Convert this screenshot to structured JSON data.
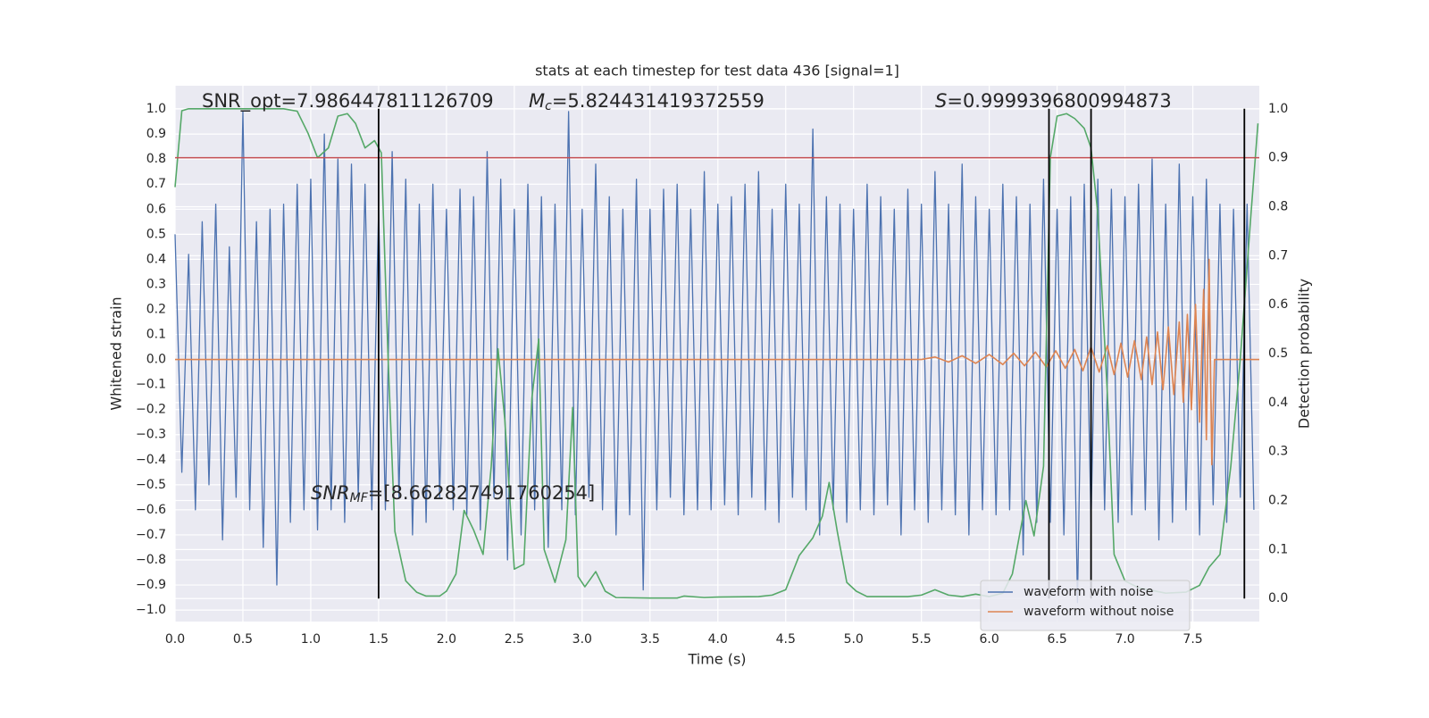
{
  "chart_data": {
    "type": "line",
    "title": "stats at each timestep for test data 436 [signal=1]",
    "xlabel": "Time (s)",
    "ylabel": "Whitened strain",
    "y2label": "Detection probability",
    "xlim": [
      0,
      7.99
    ],
    "ylim": [
      -1.046,
      1.093
    ],
    "y2lim": [
      -0.047,
      1.047
    ],
    "grid": true,
    "legend": "lower right",
    "xticks": [
      {
        "value": 0,
        "label": "0.0"
      },
      0.5,
      {
        "value": 1,
        "label": "1.0"
      },
      1.5,
      {
        "value": 2,
        "label": "2.0"
      },
      2.5,
      {
        "value": 3,
        "label": "3.0"
      },
      3.5,
      {
        "value": 4,
        "label": "4.0"
      },
      4.5,
      {
        "value": 5,
        "label": "5.0"
      },
      5.5,
      {
        "value": 6,
        "label": "6.0"
      },
      6.5,
      {
        "value": 7,
        "label": "7.0"
      },
      7.5
    ],
    "yticks": [
      {
        "value": 1,
        "label": "1.0"
      },
      0.9,
      0.8,
      0.7,
      0.6,
      0.5,
      0.4,
      0.3,
      0.2,
      0.1,
      {
        "value": 0,
        "label": "0.0"
      },
      {
        "value": -0.1,
        "label": "−0.1"
      },
      {
        "value": -0.2,
        "label": "−0.2"
      },
      {
        "value": -0.3,
        "label": "−0.3"
      },
      {
        "value": -0.4,
        "label": "−0.4"
      },
      {
        "value": -0.5,
        "label": "−0.5"
      },
      {
        "value": -0.6,
        "label": "−0.6"
      },
      {
        "value": -0.7,
        "label": "−0.7"
      },
      {
        "value": -0.8,
        "label": "−0.8"
      },
      {
        "value": -0.9,
        "label": "−0.9"
      },
      {
        "value": -1,
        "label": "−1.0"
      }
    ],
    "y2ticks": [
      {
        "value": 0,
        "label": "0.0"
      },
      0.1,
      0.2,
      0.3,
      0.4,
      0.5,
      0.6,
      0.7,
      0.8,
      0.9,
      {
        "value": 1,
        "label": "1.0"
      }
    ],
    "series": [
      {
        "name": "waveform with noise",
        "color": "#4c72b0",
        "x": [
          0,
          0.05,
          0.1,
          0.15,
          0.2,
          0.25,
          0.3,
          0.35,
          0.4,
          0.45,
          0.5,
          0.55,
          0.6,
          0.65,
          0.7,
          0.75,
          0.8,
          0.85,
          0.9,
          0.95,
          1,
          1.05,
          1.1,
          1.15,
          1.2,
          1.25,
          1.3,
          1.35,
          1.4,
          1.45,
          1.5,
          1.55,
          1.6,
          1.65,
          1.7,
          1.75,
          1.8,
          1.85,
          1.9,
          1.95,
          2,
          2.05,
          2.1,
          2.15,
          2.2,
          2.25,
          2.3,
          2.35,
          2.4,
          2.45,
          2.5,
          2.55,
          2.6,
          2.65,
          2.7,
          2.75,
          2.8,
          2.85,
          2.9,
          2.95,
          3,
          3.05,
          3.1,
          3.15,
          3.2,
          3.25,
          3.3,
          3.35,
          3.4,
          3.45,
          3.5,
          3.55,
          3.6,
          3.65,
          3.7,
          3.75,
          3.8,
          3.85,
          3.9,
          3.95,
          4,
          4.05,
          4.1,
          4.15,
          4.2,
          4.25,
          4.3,
          4.35,
          4.4,
          4.45,
          4.5,
          4.55,
          4.6,
          4.65,
          4.7,
          4.75,
          4.8,
          4.85,
          4.9,
          4.95,
          5,
          5.05,
          5.1,
          5.15,
          5.2,
          5.25,
          5.3,
          5.35,
          5.4,
          5.45,
          5.5,
          5.55,
          5.6,
          5.65,
          5.7,
          5.75,
          5.8,
          5.85,
          5.9,
          5.95,
          6,
          6.05,
          6.1,
          6.15,
          6.2,
          6.25,
          6.3,
          6.35,
          6.4,
          6.45,
          6.5,
          6.55,
          6.6,
          6.65,
          6.7,
          6.75,
          6.8,
          6.85,
          6.9,
          6.95,
          7,
          7.05,
          7.1,
          7.15,
          7.2,
          7.25,
          7.3,
          7.35,
          7.4,
          7.45,
          7.5,
          7.55,
          7.6,
          7.65,
          7.7,
          7.75,
          7.8,
          7.85,
          7.9,
          7.95
        ],
        "values": [
          0.5,
          -0.45,
          0.42,
          -0.6,
          0.55,
          -0.5,
          0.62,
          -0.72,
          0.45,
          -0.55,
          0.99,
          -0.6,
          0.55,
          -0.75,
          0.6,
          -0.9,
          0.62,
          -0.65,
          0.7,
          -0.6,
          0.72,
          -0.68,
          0.9,
          -0.6,
          0.8,
          -0.65,
          0.78,
          -0.55,
          0.7,
          -0.6,
          0.6,
          -0.6,
          0.83,
          -0.55,
          0.72,
          -0.7,
          0.62,
          -0.65,
          0.7,
          -0.55,
          0.6,
          -0.6,
          0.68,
          -0.62,
          0.65,
          -0.68,
          0.83,
          -0.55,
          0.72,
          -0.8,
          0.6,
          -0.7,
          0.7,
          -0.6,
          0.65,
          -0.75,
          0.62,
          -0.6,
          0.99,
          -0.62,
          0.6,
          -0.55,
          0.78,
          -0.6,
          0.65,
          -0.7,
          0.6,
          -0.62,
          0.72,
          -0.92,
          0.6,
          -0.6,
          0.68,
          -0.55,
          0.7,
          -0.62,
          0.6,
          -0.6,
          0.75,
          -0.6,
          0.62,
          -0.58,
          0.65,
          -0.62,
          0.7,
          -0.55,
          0.75,
          -0.6,
          0.6,
          -0.65,
          0.7,
          -0.55,
          0.62,
          -0.6,
          0.92,
          -0.7,
          0.65,
          -0.6,
          0.62,
          -0.65,
          0.6,
          -0.6,
          0.7,
          -0.62,
          0.65,
          -0.58,
          0.6,
          -0.7,
          0.68,
          -0.6,
          0.62,
          -0.65,
          0.75,
          -0.6,
          0.62,
          -0.62,
          0.78,
          -0.7,
          0.65,
          -0.6,
          0.6,
          -0.62,
          0.7,
          -0.6,
          0.65,
          -0.78,
          0.62,
          -0.65,
          0.72,
          -0.65,
          0.6,
          -0.7,
          0.65,
          -0.97,
          0.7,
          -0.65,
          0.72,
          -0.6,
          0.68,
          -0.65,
          0.65,
          -0.62,
          0.7,
          -0.6,
          0.8,
          -0.72,
          0.62,
          -0.65,
          0.78,
          -0.6,
          0.65,
          -0.7,
          0.72,
          -0.58,
          0.62,
          -0.65,
          0.6,
          -0.55,
          0.62,
          -0.6
        ]
      },
      {
        "name": "waveform without noise",
        "color": "#dd8452",
        "x": [
          0,
          5.5,
          5.6,
          5.7,
          5.8,
          5.9,
          6.0,
          6.1,
          6.18,
          6.26,
          6.34,
          6.42,
          6.49,
          6.56,
          6.63,
          6.69,
          6.75,
          6.81,
          6.87,
          6.92,
          6.97,
          7.02,
          7.07,
          7.12,
          7.16,
          7.2,
          7.24,
          7.28,
          7.32,
          7.36,
          7.4,
          7.43,
          7.46,
          7.49,
          7.52,
          7.55,
          7.58,
          7.6,
          7.62,
          7.64,
          7.66,
          7.7,
          7.99
        ],
        "values": [
          0,
          0,
          0.01,
          -0.01,
          0.015,
          -0.015,
          0.02,
          -0.02,
          0.025,
          -0.025,
          0.03,
          -0.03,
          0.035,
          -0.035,
          0.04,
          -0.045,
          0.05,
          -0.05,
          0.055,
          -0.06,
          0.065,
          -0.07,
          0.075,
          -0.08,
          0.09,
          -0.1,
          0.11,
          -0.12,
          0.13,
          -0.14,
          0.15,
          -0.17,
          0.18,
          -0.2,
          0.22,
          -0.25,
          0.28,
          -0.32,
          0.4,
          -0.42,
          0,
          0,
          0
        ]
      },
      {
        "color": "#55a868",
        "axis": "y2",
        "x": [
          0,
          0.05,
          0.1,
          0.5,
          0.8,
          0.9,
          0.98,
          1.05,
          1.13,
          1.2,
          1.27,
          1.33,
          1.4,
          1.47,
          1.52,
          1.57,
          1.62,
          1.7,
          1.78,
          1.85,
          1.95,
          2.0,
          2.07,
          2.13,
          2.2,
          2.27,
          2.33,
          2.38,
          2.43,
          2.5,
          2.57,
          2.63,
          2.68,
          2.72,
          2.8,
          2.88,
          2.93,
          2.97,
          3.02,
          3.1,
          3.17,
          3.25,
          3.5,
          3.7,
          3.75,
          3.9,
          4.0,
          4.3,
          4.4,
          4.5,
          4.6,
          4.7,
          4.77,
          4.82,
          4.88,
          4.95,
          5.02,
          5.1,
          5.4,
          5.5,
          5.6,
          5.7,
          5.8,
          5.9,
          6.0,
          6.1,
          6.17,
          6.27,
          6.33,
          6.4,
          6.45,
          6.5,
          6.57,
          6.63,
          6.7,
          6.75,
          6.8,
          6.87,
          6.92,
          7.0,
          7.1,
          7.3,
          7.45,
          7.55,
          7.62,
          7.7,
          7.78,
          7.85,
          7.93,
          7.98
        ],
        "values": [
          0.84,
          0.996,
          1.0,
          1.0,
          1.0,
          0.995,
          0.95,
          0.9,
          0.92,
          0.985,
          0.99,
          0.97,
          0.92,
          0.935,
          0.91,
          0.49,
          0.137,
          0.036,
          0.013,
          0.005,
          0.005,
          0.015,
          0.05,
          0.18,
          0.14,
          0.09,
          0.27,
          0.51,
          0.365,
          0.06,
          0.07,
          0.41,
          0.53,
          0.1,
          0.033,
          0.12,
          0.39,
          0.045,
          0.024,
          0.055,
          0.015,
          0.002,
          0.001,
          0.001,
          0.005,
          0.002,
          0.003,
          0.004,
          0.007,
          0.018,
          0.088,
          0.124,
          0.168,
          0.237,
          0.137,
          0.033,
          0.015,
          0.004,
          0.004,
          0.007,
          0.018,
          0.007,
          0.004,
          0.009,
          0.004,
          0.011,
          0.05,
          0.2,
          0.128,
          0.27,
          0.9,
          0.985,
          0.99,
          0.98,
          0.96,
          0.92,
          0.785,
          0.42,
          0.09,
          0.036,
          0.022,
          0.011,
          0.013,
          0.027,
          0.064,
          0.09,
          0.27,
          0.49,
          0.79,
          0.97
        ]
      }
    ],
    "hlines": [
      {
        "value": 0.9,
        "axis": "y2",
        "color": "#c44e52"
      }
    ],
    "vlines": {
      "axis": "y2",
      "span": [
        0,
        1
      ],
      "color": "#000000",
      "values": [
        1.5,
        6.44,
        6.75,
        7.88
      ]
    },
    "annotations": [
      {
        "text": "SNR_opt=7.986447811126709"
      },
      {
        "symbol": "M",
        "subscript": "c",
        "text": "=5.824431419372559"
      },
      {
        "symbol": "S",
        "text": "=0.9999396800994873"
      },
      {
        "symbol": "SNR",
        "subscript": "MF",
        "text": "=[8.662827491760254]"
      }
    ]
  }
}
